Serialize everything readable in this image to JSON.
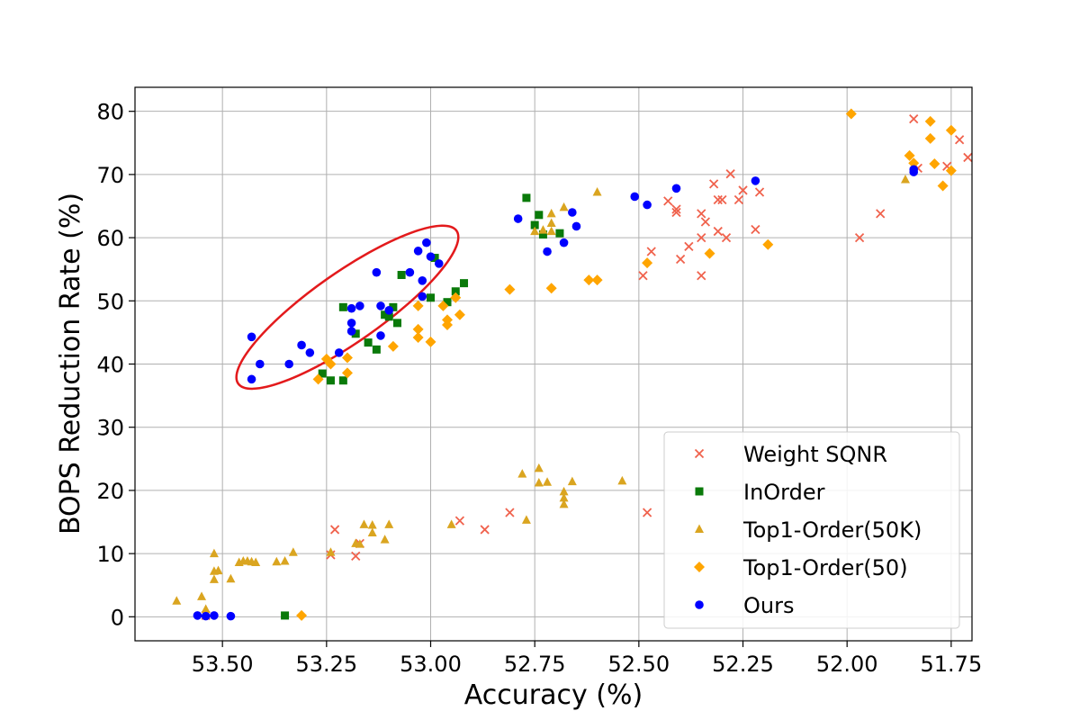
{
  "chart_data": {
    "type": "scatter",
    "title": "",
    "xlabel": "Accuracy (%)",
    "ylabel": "BOPS Reduction Rate (%)",
    "xlim": [
      53.71,
      51.7
    ],
    "ylim": [
      -3.8,
      83.8
    ],
    "x_inverted": true,
    "xticks": [
      53.5,
      53.25,
      53.0,
      52.75,
      52.5,
      52.25,
      52.0,
      51.75
    ],
    "xtick_labels": [
      "53.50",
      "53.25",
      "53.00",
      "52.75",
      "52.50",
      "52.25",
      "52.00",
      "51.75"
    ],
    "yticks": [
      0,
      10,
      20,
      30,
      40,
      50,
      60,
      70,
      80
    ],
    "ytick_labels": [
      "0",
      "10",
      "20",
      "30",
      "40",
      "50",
      "60",
      "70",
      "80"
    ],
    "grid": true,
    "legend_position": "lower-right",
    "annotation": {
      "type": "ellipse",
      "color": "#e31a1c",
      "center": [
        53.2,
        49.0
      ],
      "semi_axis_x": 0.32,
      "semi_axis_y": 5.5,
      "rotation_deg": -35
    },
    "series": [
      {
        "name": "Weight SQNR",
        "marker": "x",
        "color": "#f0624d",
        "points": [
          [
            53.54,
            0.2
          ],
          [
            53.23,
            13.8
          ],
          [
            53.24,
            9.8
          ],
          [
            53.18,
            9.6
          ],
          [
            53.17,
            11.6
          ],
          [
            52.93,
            15.2
          ],
          [
            52.87,
            13.8
          ],
          [
            52.81,
            16.5
          ],
          [
            52.48,
            16.5
          ],
          [
            52.49,
            54.0
          ],
          [
            52.47,
            57.8
          ],
          [
            52.43,
            65.8
          ],
          [
            52.41,
            64.0
          ],
          [
            52.41,
            64.5
          ],
          [
            52.4,
            56.6
          ],
          [
            52.38,
            58.6
          ],
          [
            52.35,
            63.8
          ],
          [
            52.35,
            60.0
          ],
          [
            52.35,
            54.0
          ],
          [
            52.34,
            62.5
          ],
          [
            52.32,
            68.5
          ],
          [
            52.31,
            61.0
          ],
          [
            52.31,
            66.0
          ],
          [
            52.3,
            66.0
          ],
          [
            52.29,
            60.0
          ],
          [
            52.28,
            70.1
          ],
          [
            52.26,
            66.0
          ],
          [
            52.25,
            67.5
          ],
          [
            52.22,
            61.3
          ],
          [
            52.21,
            67.2
          ],
          [
            51.97,
            60.0
          ],
          [
            51.92,
            63.8
          ],
          [
            51.84,
            78.8
          ],
          [
            51.83,
            71.0
          ],
          [
            51.76,
            71.3
          ],
          [
            51.73,
            75.5
          ],
          [
            51.71,
            72.7
          ]
        ]
      },
      {
        "name": "InOrder",
        "marker": "square",
        "color": "#0a7a0a",
        "points": [
          [
            53.35,
            0.2
          ],
          [
            53.26,
            38.5
          ],
          [
            53.24,
            37.4
          ],
          [
            53.21,
            37.4
          ],
          [
            53.21,
            49.0
          ],
          [
            53.18,
            44.8
          ],
          [
            53.15,
            43.4
          ],
          [
            53.13,
            42.3
          ],
          [
            53.11,
            47.8
          ],
          [
            53.1,
            47.5
          ],
          [
            53.09,
            49.0
          ],
          [
            53.08,
            46.5
          ],
          [
            53.07,
            54.1
          ],
          [
            53.0,
            50.5
          ],
          [
            52.99,
            56.8
          ],
          [
            52.96,
            49.8
          ],
          [
            52.94,
            51.5
          ],
          [
            52.92,
            52.8
          ],
          [
            52.77,
            66.3
          ],
          [
            52.75,
            62.0
          ],
          [
            52.74,
            63.6
          ],
          [
            52.73,
            60.5
          ],
          [
            52.69,
            60.7
          ]
        ]
      },
      {
        "name": "Top1-Order(50K)",
        "marker": "triangle",
        "color": "#daa520",
        "points": [
          [
            53.61,
            2.5
          ],
          [
            53.55,
            3.2
          ],
          [
            53.54,
            1.2
          ],
          [
            53.52,
            10.0
          ],
          [
            53.52,
            7.2
          ],
          [
            53.52,
            5.9
          ],
          [
            53.51,
            7.3
          ],
          [
            53.48,
            6.0
          ],
          [
            53.46,
            8.6
          ],
          [
            53.45,
            8.8
          ],
          [
            53.44,
            8.8
          ],
          [
            53.43,
            8.7
          ],
          [
            53.42,
            8.6
          ],
          [
            53.37,
            8.7
          ],
          [
            53.35,
            8.8
          ],
          [
            53.33,
            10.2
          ],
          [
            53.24,
            10.2
          ],
          [
            53.18,
            11.6
          ],
          [
            53.17,
            11.5
          ],
          [
            53.16,
            14.6
          ],
          [
            53.14,
            14.5
          ],
          [
            53.14,
            13.3
          ],
          [
            53.11,
            12.2
          ],
          [
            53.1,
            14.6
          ],
          [
            52.95,
            14.6
          ],
          [
            52.78,
            22.6
          ],
          [
            52.77,
            15.3
          ],
          [
            52.74,
            23.5
          ],
          [
            52.74,
            21.2
          ],
          [
            52.72,
            21.3
          ],
          [
            52.68,
            19.8
          ],
          [
            52.68,
            18.8
          ],
          [
            52.68,
            17.8
          ],
          [
            52.66,
            21.4
          ],
          [
            52.75,
            61.0
          ],
          [
            52.73,
            61.2
          ],
          [
            52.71,
            63.8
          ],
          [
            52.71,
            62.3
          ],
          [
            52.71,
            61.0
          ],
          [
            52.68,
            64.8
          ],
          [
            52.6,
            67.2
          ],
          [
            52.54,
            21.5
          ],
          [
            51.86,
            69.2
          ]
        ]
      },
      {
        "name": "Top1-Order(50)",
        "marker": "diamond",
        "color": "#ffa500",
        "points": [
          [
            53.31,
            0.2
          ],
          [
            53.27,
            37.6
          ],
          [
            53.25,
            40.8
          ],
          [
            53.24,
            40.0
          ],
          [
            53.2,
            41.0
          ],
          [
            53.2,
            38.6
          ],
          [
            53.09,
            42.8
          ],
          [
            53.03,
            49.2
          ],
          [
            53.03,
            45.5
          ],
          [
            53.03,
            44.2
          ],
          [
            53.0,
            43.5
          ],
          [
            52.97,
            49.2
          ],
          [
            52.96,
            47.0
          ],
          [
            52.96,
            46.2
          ],
          [
            52.94,
            50.5
          ],
          [
            52.93,
            47.8
          ],
          [
            52.81,
            51.8
          ],
          [
            52.71,
            52.0
          ],
          [
            52.62,
            53.3
          ],
          [
            52.6,
            53.3
          ],
          [
            52.48,
            56.0
          ],
          [
            52.33,
            57.5
          ],
          [
            52.19,
            58.9
          ],
          [
            51.99,
            79.6
          ],
          [
            51.85,
            73.0
          ],
          [
            51.84,
            71.8
          ],
          [
            51.8,
            78.4
          ],
          [
            51.8,
            75.7
          ],
          [
            51.79,
            71.7
          ],
          [
            51.77,
            68.2
          ],
          [
            51.75,
            77.0
          ],
          [
            51.75,
            70.6
          ]
        ]
      },
      {
        "name": "Ours",
        "marker": "circle",
        "color": "#0000ff",
        "points": [
          [
            53.56,
            0.2
          ],
          [
            53.54,
            0.1
          ],
          [
            53.52,
            0.2
          ],
          [
            53.48,
            0.1
          ],
          [
            53.43,
            37.6
          ],
          [
            53.43,
            44.3
          ],
          [
            53.41,
            40.0
          ],
          [
            53.34,
            40.0
          ],
          [
            53.31,
            43.0
          ],
          [
            53.29,
            41.8
          ],
          [
            53.22,
            41.8
          ],
          [
            53.19,
            48.8
          ],
          [
            53.19,
            46.5
          ],
          [
            53.19,
            45.2
          ],
          [
            53.17,
            49.2
          ],
          [
            53.13,
            54.5
          ],
          [
            53.12,
            44.5
          ],
          [
            53.12,
            49.2
          ],
          [
            53.1,
            48.5
          ],
          [
            53.05,
            54.5
          ],
          [
            53.03,
            57.9
          ],
          [
            53.02,
            53.2
          ],
          [
            53.01,
            59.2
          ],
          [
            53.0,
            57.0
          ],
          [
            52.98,
            55.9
          ],
          [
            52.79,
            63.0
          ],
          [
            52.72,
            57.8
          ],
          [
            52.68,
            59.2
          ],
          [
            52.66,
            64.0
          ],
          [
            52.65,
            61.8
          ],
          [
            52.51,
            66.5
          ],
          [
            52.48,
            65.2
          ],
          [
            52.41,
            67.8
          ],
          [
            52.22,
            69.0
          ],
          [
            51.84,
            70.8
          ],
          [
            51.84,
            70.4
          ],
          [
            53.02,
            50.7
          ]
        ]
      }
    ]
  }
}
